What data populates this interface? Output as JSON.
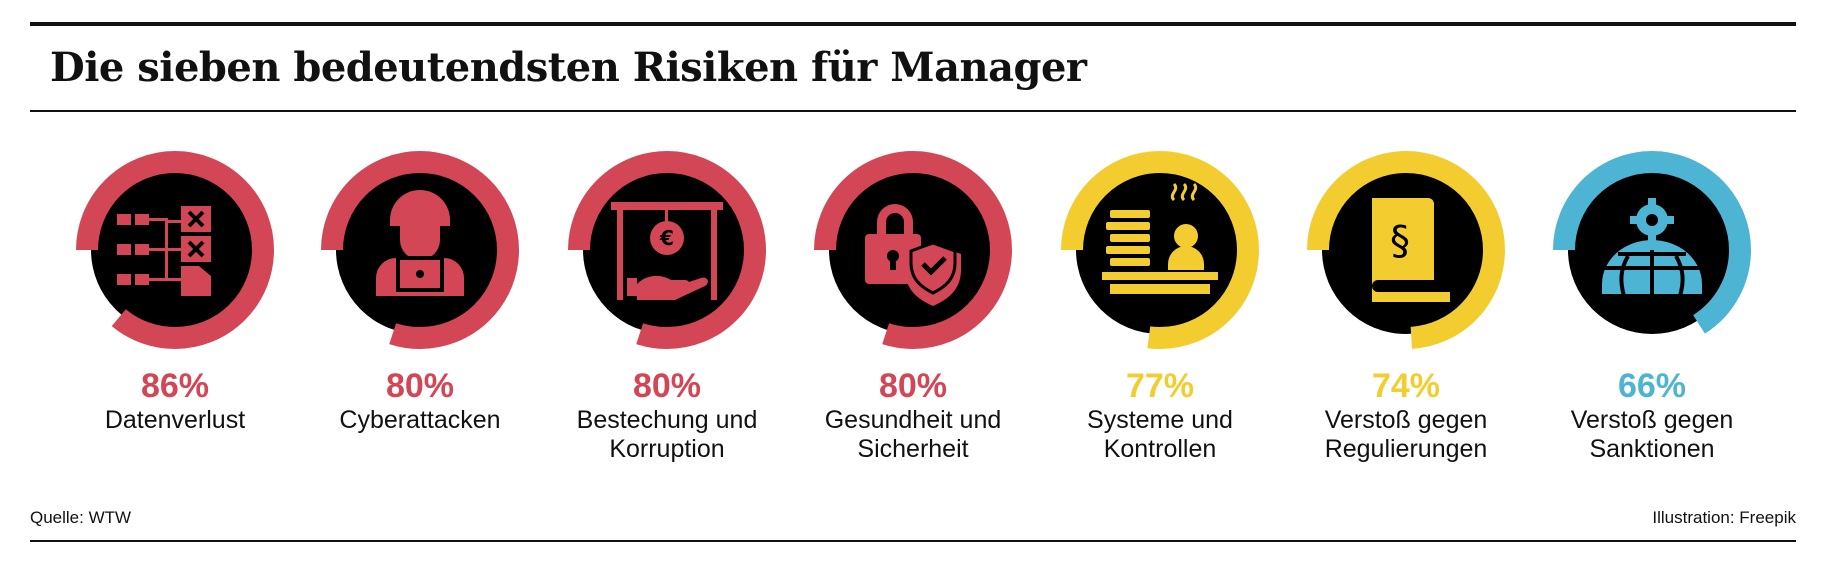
{
  "header": {
    "title": "Die sieben bedeutendsten Risiken für Manager"
  },
  "footer": {
    "source": "Quelle: WTW",
    "credit": "Illustration: Freepik"
  },
  "colors": {
    "red": "#d34656",
    "yellow": "#f3cd2f",
    "blue": "#4db4d4",
    "dark": "#000000"
  },
  "chart_data": {
    "type": "donut",
    "title": "Die sieben bedeutendsten Risiken für Manager",
    "unit": "%",
    "items": [
      {
        "pct_text": "86%",
        "value": 86,
        "label_lines": [
          "Datenverlust"
        ],
        "color": "#d34656",
        "icon": "data-flowchart-icon"
      },
      {
        "pct_text": "80%",
        "value": 80,
        "label_lines": [
          "Cyberattacken"
        ],
        "color": "#d34656",
        "icon": "hacker-laptop-icon"
      },
      {
        "pct_text": "80%",
        "value": 80,
        "label_lines": [
          "Bestechung und",
          "Korruption"
        ],
        "color": "#d34656",
        "icon": "bribery-euro-hand-icon"
      },
      {
        "pct_text": "80%",
        "value": 80,
        "label_lines": [
          "Gesundheit und",
          "Sicherheit"
        ],
        "color": "#d34656",
        "icon": "padlock-shield-icon"
      },
      {
        "pct_text": "77%",
        "value": 77,
        "label_lines": [
          "Systeme und",
          "Kontrollen"
        ],
        "color": "#f3cd2f",
        "icon": "clerk-desk-icon"
      },
      {
        "pct_text": "74%",
        "value": 74,
        "label_lines": [
          "Verstoß gegen",
          "Regulierungen"
        ],
        "color": "#f3cd2f",
        "icon": "law-book-icon"
      },
      {
        "pct_text": "66%",
        "value": 66,
        "label_lines": [
          "Verstoß gegen",
          "Sanktionen"
        ],
        "color": "#4db4d4",
        "icon": "globe-gear-icon"
      }
    ]
  }
}
